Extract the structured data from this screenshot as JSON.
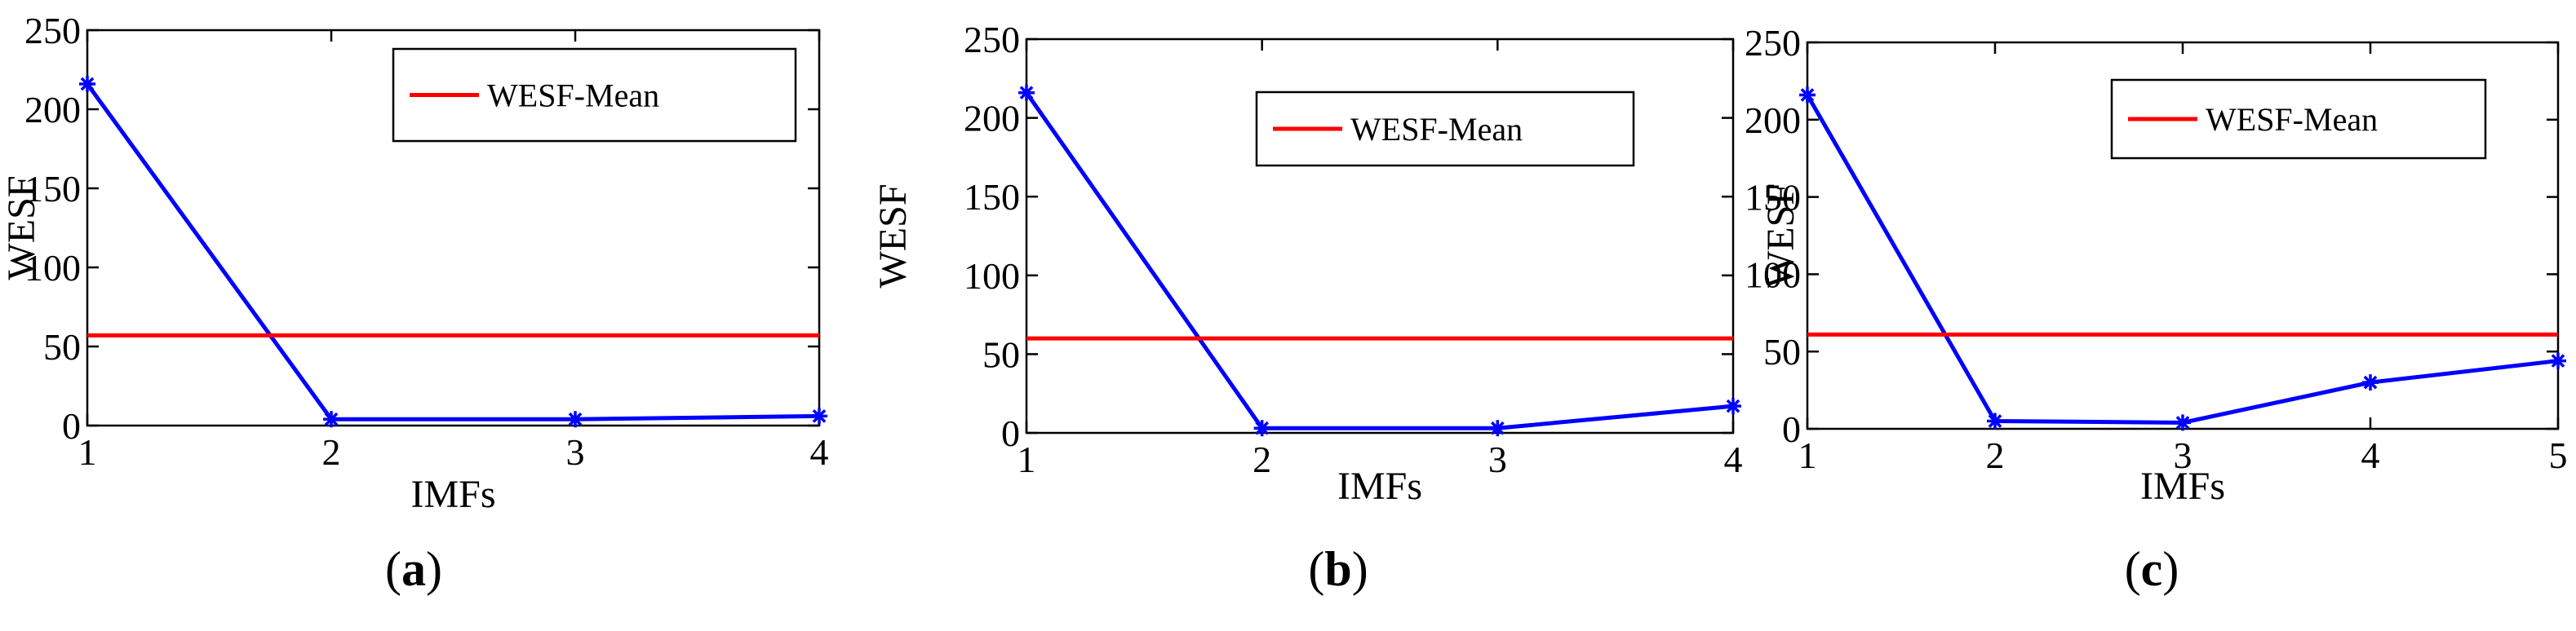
{
  "chart_data": [
    {
      "type": "line",
      "caption": "(a)",
      "caption_letter": "a",
      "xlabel": "IMFs",
      "ylabel": "WESF",
      "xlim": [
        1,
        4
      ],
      "ylim": [
        0,
        250
      ],
      "x_ticks": [
        "1",
        "2",
        "3",
        "4"
      ],
      "y_ticks": [
        "0",
        "50",
        "100",
        "150",
        "200",
        "250"
      ],
      "legend_position": "top-right",
      "grid": false,
      "series": [
        {
          "role": "wesf",
          "color": "#0000ff",
          "marker": "asterisk",
          "x": [
            1,
            2,
            3,
            4
          ],
          "values": [
            216,
            4,
            4,
            6
          ]
        },
        {
          "role": "mean",
          "name": "WESF-Mean",
          "color": "#ff0000",
          "y": 57
        }
      ]
    },
    {
      "type": "line",
      "caption": "(b)",
      "caption_letter": "b",
      "xlabel": "IMFs",
      "ylabel": "WESF",
      "xlim": [
        1,
        4
      ],
      "ylim": [
        0,
        250
      ],
      "x_ticks": [
        "1",
        "2",
        "3",
        "4"
      ],
      "y_ticks": [
        "0",
        "50",
        "100",
        "150",
        "200",
        "250"
      ],
      "legend_position": "top-right",
      "grid": false,
      "series": [
        {
          "role": "wesf",
          "color": "#0000ff",
          "marker": "asterisk",
          "x": [
            1,
            2,
            3,
            4
          ],
          "values": [
            216,
            3,
            3,
            17
          ]
        },
        {
          "role": "mean",
          "name": "WESF-Mean",
          "color": "#ff0000",
          "y": 60
        }
      ]
    },
    {
      "type": "line",
      "caption": "(c)",
      "caption_letter": "c",
      "xlabel": "IMFs",
      "ylabel": "WESF",
      "xlim": [
        1,
        5
      ],
      "ylim": [
        0,
        250
      ],
      "x_ticks": [
        "1",
        "2",
        "3",
        "4",
        "5"
      ],
      "y_ticks": [
        "0",
        "50",
        "100",
        "150",
        "200",
        "250"
      ],
      "legend_position": "top-right",
      "grid": false,
      "series": [
        {
          "role": "wesf",
          "color": "#0000ff",
          "marker": "asterisk",
          "x": [
            1,
            2,
            3,
            4,
            5
          ],
          "values": [
            216,
            5,
            4,
            30,
            44
          ]
        },
        {
          "role": "mean",
          "name": "WESF-Mean",
          "color": "#ff0000",
          "y": 61
        }
      ]
    }
  ]
}
